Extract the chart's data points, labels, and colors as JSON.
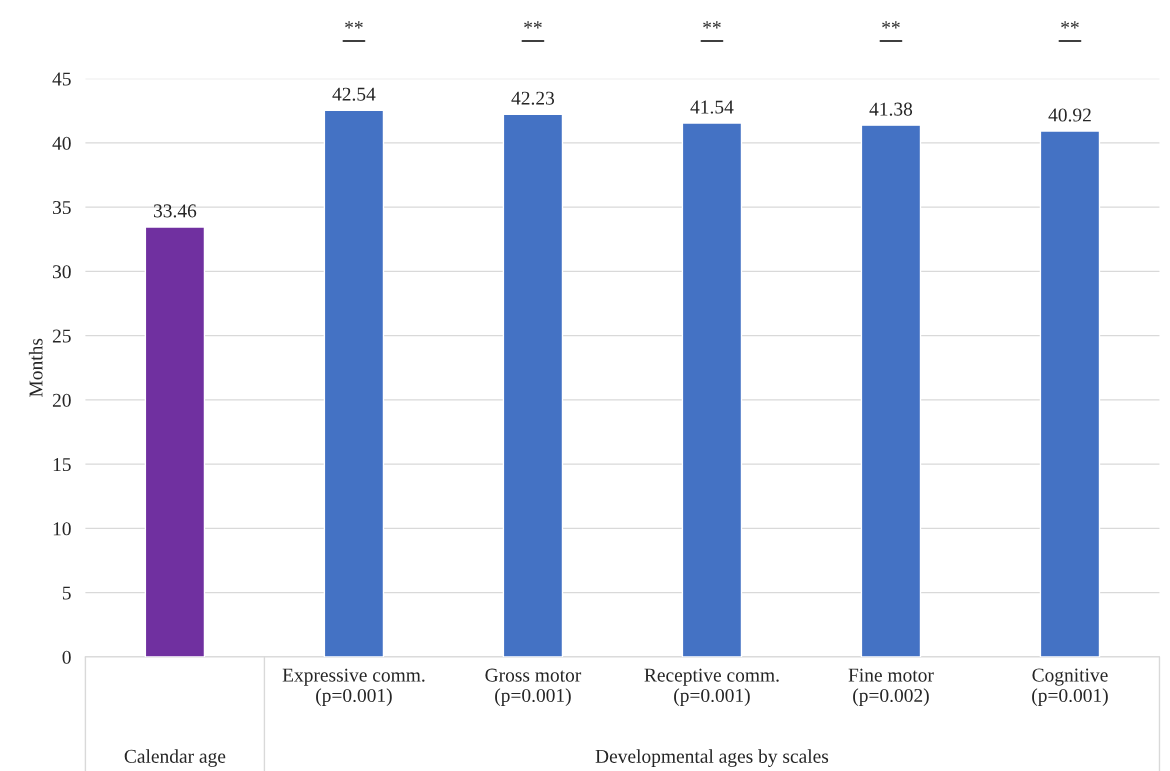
{
  "chart_data": {
    "type": "bar",
    "ylabel": "Months",
    "categories": [
      null,
      "Expressive comm.\n(p=0.001)",
      "Gross motor\n(p=0.001)",
      "Receptive comm.\n(p=0.001)",
      "Fine motor\n(p=0.002)",
      "Cognitive\n(p=0.001)"
    ],
    "values": [
      33.46,
      42.54,
      42.23,
      41.54,
      41.38,
      40.92
    ],
    "colors": [
      "#7030a0",
      "#4472c4",
      "#4472c4",
      "#4472c4",
      "#4472c4",
      "#4472c4"
    ],
    "ylim": [
      0,
      45
    ],
    "yticks": [
      0,
      5,
      10,
      15,
      20,
      25,
      30,
      35,
      40,
      45
    ],
    "grid": "y",
    "data_labels": true,
    "annotations": [
      "**",
      "**",
      "**",
      "**",
      "**",
      "Calendar age",
      "Developmental ages by scales"
    ]
  }
}
